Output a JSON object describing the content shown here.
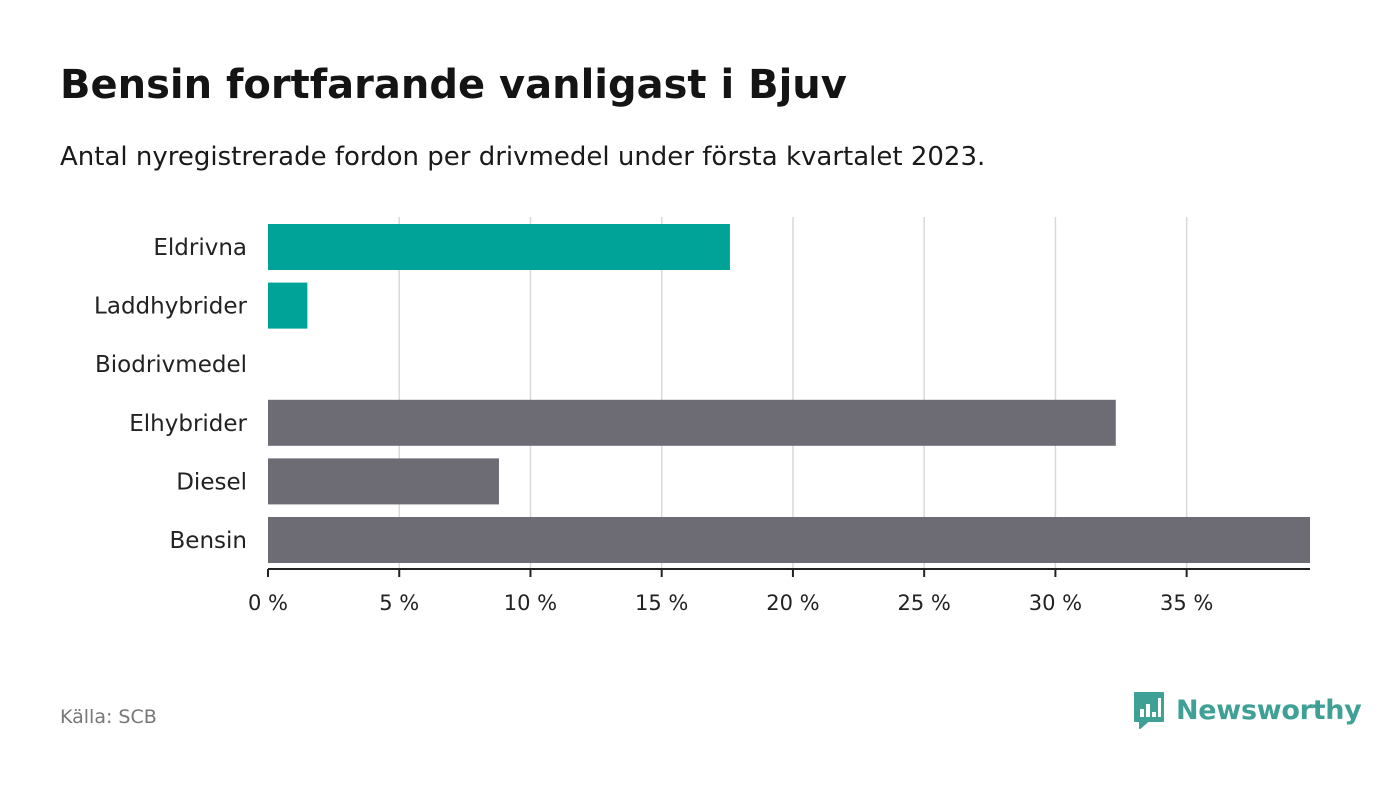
{
  "title": "Bensin fortfarande vanligast i Bjuv",
  "subtitle": "Antal nyregistrerade fordon per drivmedel under första kvartalet 2023.",
  "source": "Källa: SCB",
  "brand": "Newsworthy",
  "colors": {
    "electric": "#00a398",
    "other": "#6d6c74",
    "grid": "#d9d9d9",
    "axis": "#222222",
    "brand": "#3fa095"
  },
  "chart_data": {
    "type": "bar",
    "orientation": "horizontal",
    "categories": [
      "Eldrivna",
      "Laddhybrider",
      "Biodrivmedel",
      "Elhybrider",
      "Diesel",
      "Bensin"
    ],
    "values": [
      17.6,
      1.5,
      0,
      32.3,
      8.8,
      39.7
    ],
    "bar_colors": [
      "#00a398",
      "#00a398",
      "#6d6c74",
      "#6d6c74",
      "#6d6c74",
      "#6d6c74"
    ],
    "x_ticks": [
      0,
      5,
      10,
      15,
      20,
      25,
      30,
      35
    ],
    "x_tick_labels": [
      "0 %",
      "5 %",
      "10 %",
      "15 %",
      "20 %",
      "25 %",
      "30 %",
      "35 %"
    ],
    "xlim": [
      0,
      39.7
    ],
    "grid": true
  }
}
